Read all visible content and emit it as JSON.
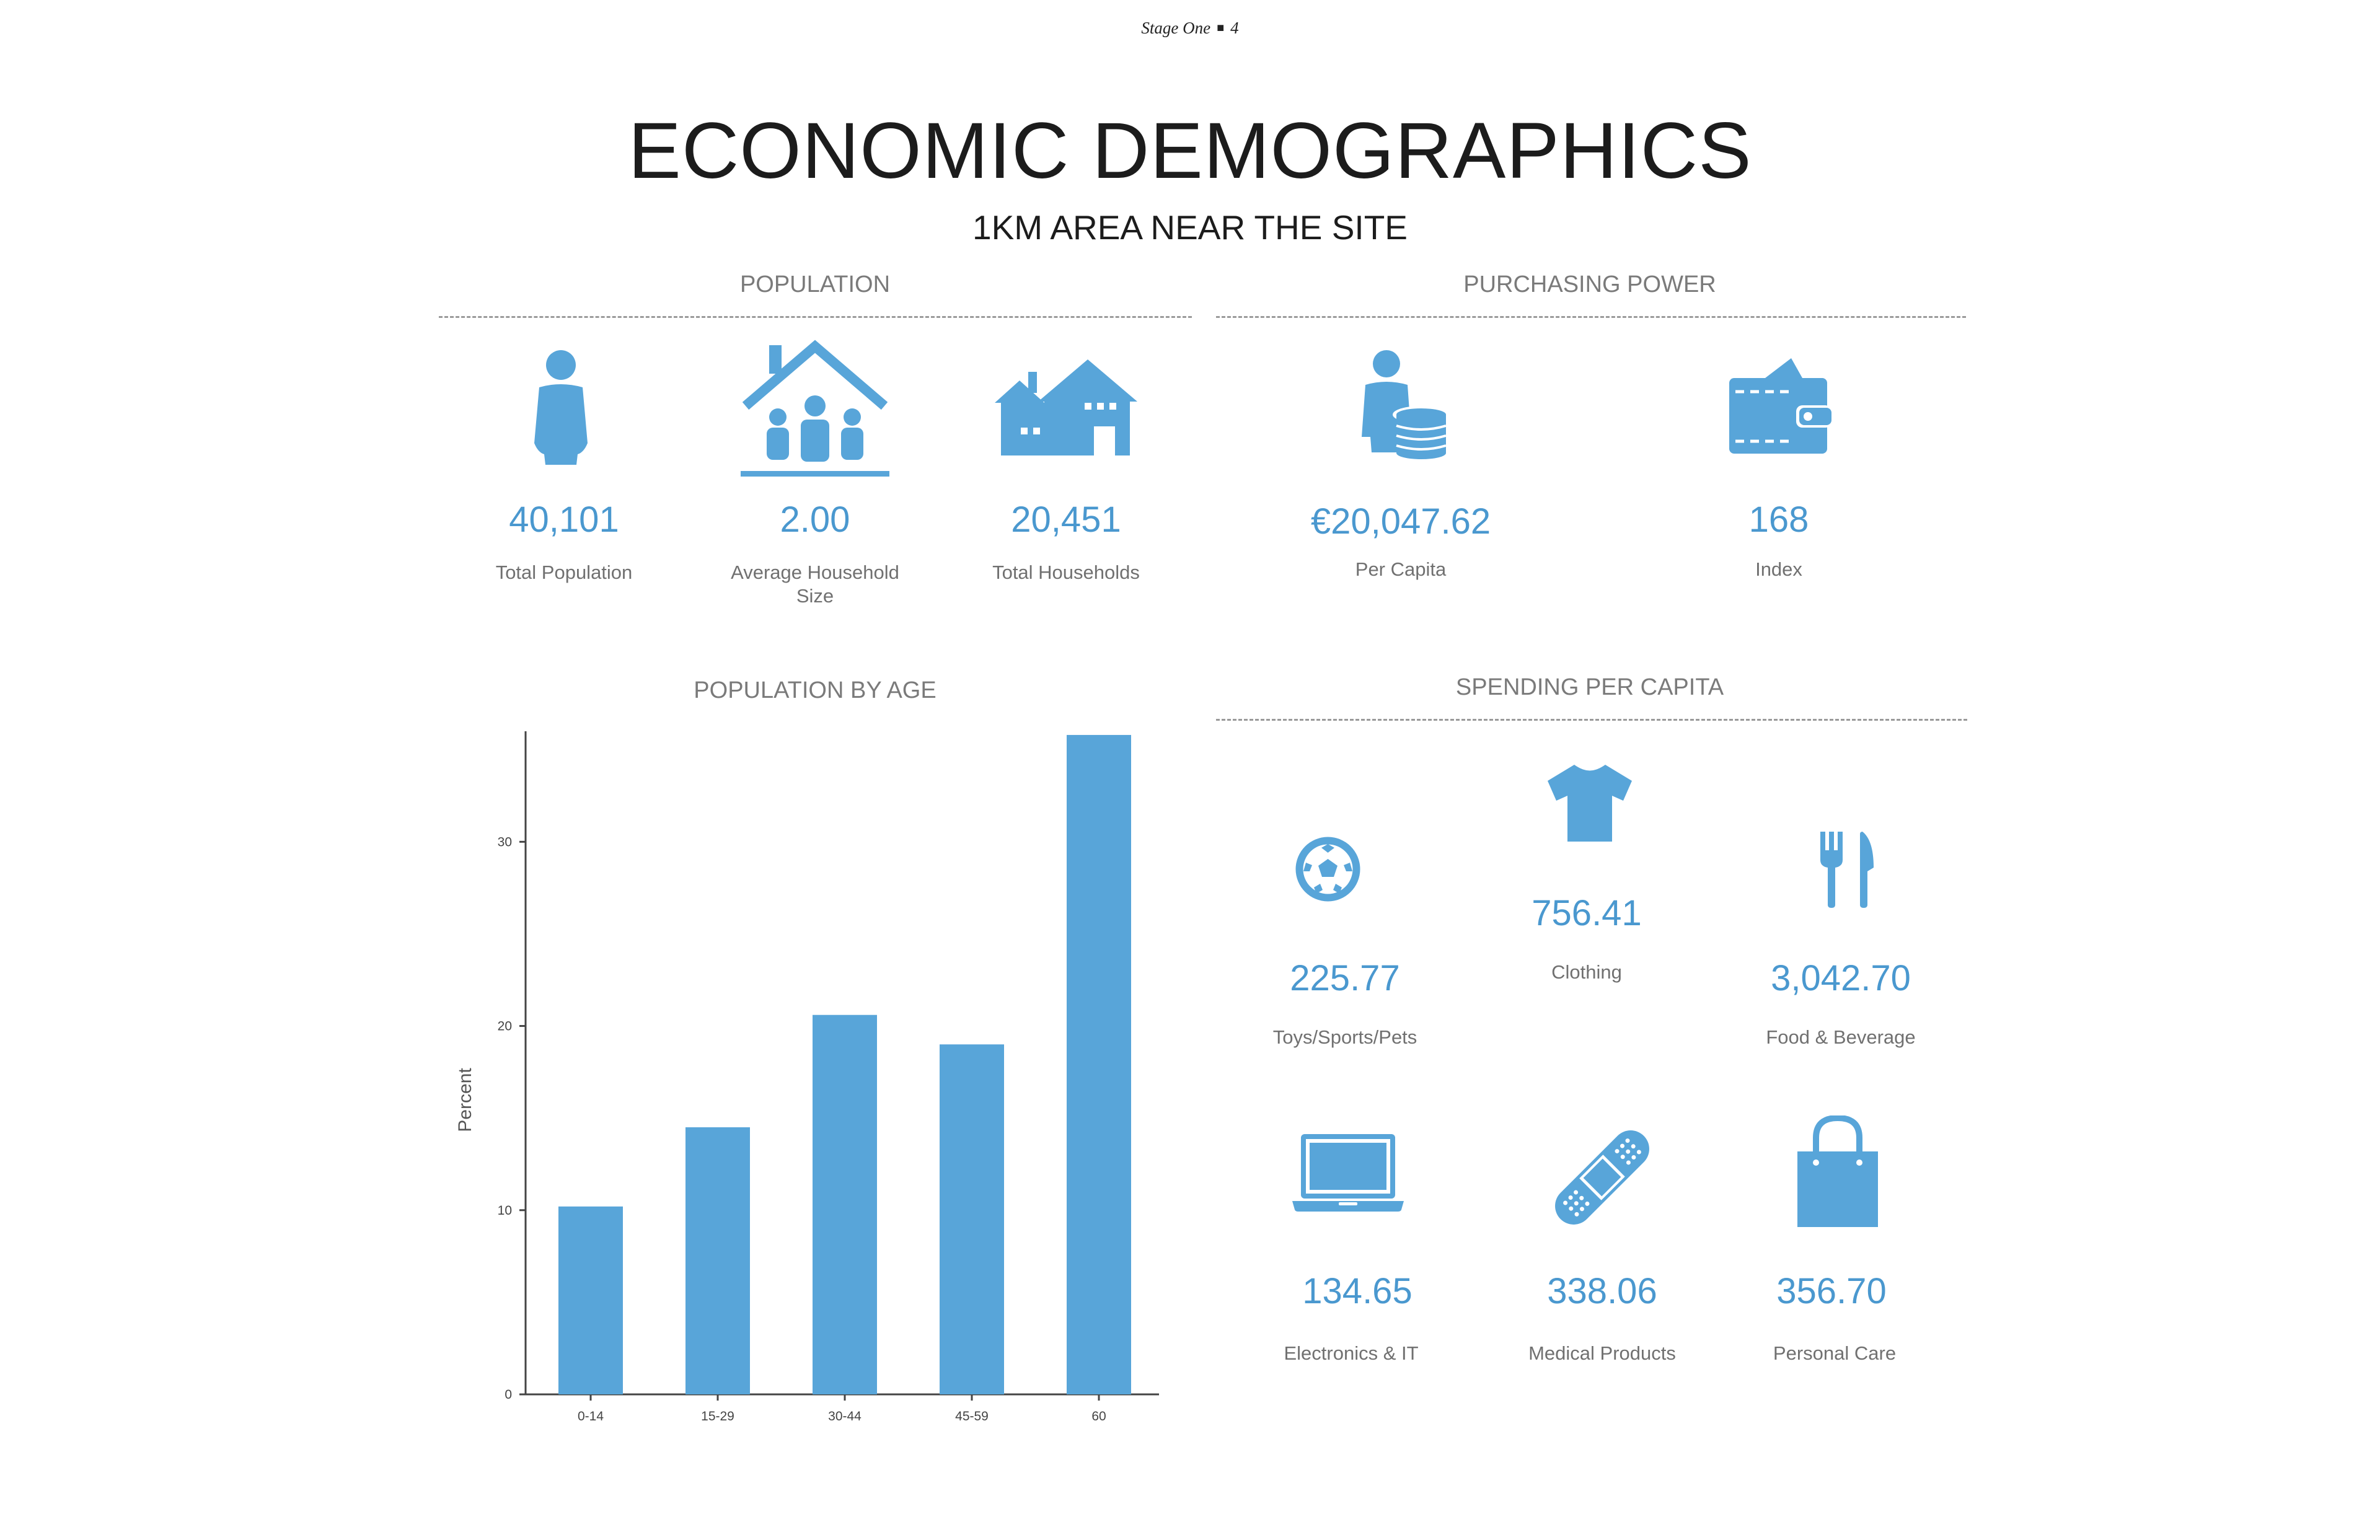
{
  "header": {
    "section": "Stage One",
    "separator": "■",
    "page": "4"
  },
  "title": "ECONOMIC DEMOGRAPHICS",
  "subtitle": "1KM AREA NEAR THE SITE",
  "population": {
    "title": "POPULATION",
    "items": [
      {
        "icon": "person-icon",
        "value": "40,101",
        "label": "Total Population"
      },
      {
        "icon": "family-house-icon",
        "value": "2.00",
        "label_line1": "Average Household",
        "label_line2": "Size"
      },
      {
        "icon": "houses-icon",
        "value": "20,451",
        "label": "Total Households"
      }
    ]
  },
  "purchasing_power": {
    "title": "PURCHASING POWER",
    "items": [
      {
        "icon": "person-coins-icon",
        "value": "€20,047.62",
        "label": "Per Capita"
      },
      {
        "icon": "wallet-icon",
        "value": "168",
        "label": "Index"
      }
    ]
  },
  "population_by_age": {
    "title": "POPULATION BY AGE"
  },
  "spending": {
    "title": "SPENDING PER CAPITA",
    "items": [
      {
        "icon": "soccer-ball-icon",
        "value": "225.77",
        "label": "Toys/Sports/Pets"
      },
      {
        "icon": "tshirt-icon",
        "value": "756.41",
        "label": "Clothing"
      },
      {
        "icon": "fork-knife-icon",
        "value": "3,042.70",
        "label": "Food & Beverage"
      },
      {
        "icon": "laptop-icon",
        "value": "134.65",
        "label": "Electronics & IT"
      },
      {
        "icon": "bandage-icon",
        "value": "338.06",
        "label": "Medical Products"
      },
      {
        "icon": "shopping-bag-icon",
        "value": "356.70",
        "label": "Personal Care"
      }
    ]
  },
  "colors": {
    "accent": "#58a5d9",
    "value_text": "#4a98cf",
    "label_text": "#707070"
  },
  "chart_data": {
    "type": "bar",
    "title": "POPULATION BY AGE",
    "categories": [
      "0-14",
      "15-29",
      "30-44",
      "45-59",
      "60"
    ],
    "values": [
      10.2,
      14.5,
      20.6,
      19.0,
      35.8
    ],
    "ylabel": "Percent",
    "xlabel": "",
    "ylim": [
      0,
      36
    ],
    "yticks": [
      0,
      10,
      20,
      30
    ],
    "grid": false,
    "color": "#58a5d9"
  }
}
